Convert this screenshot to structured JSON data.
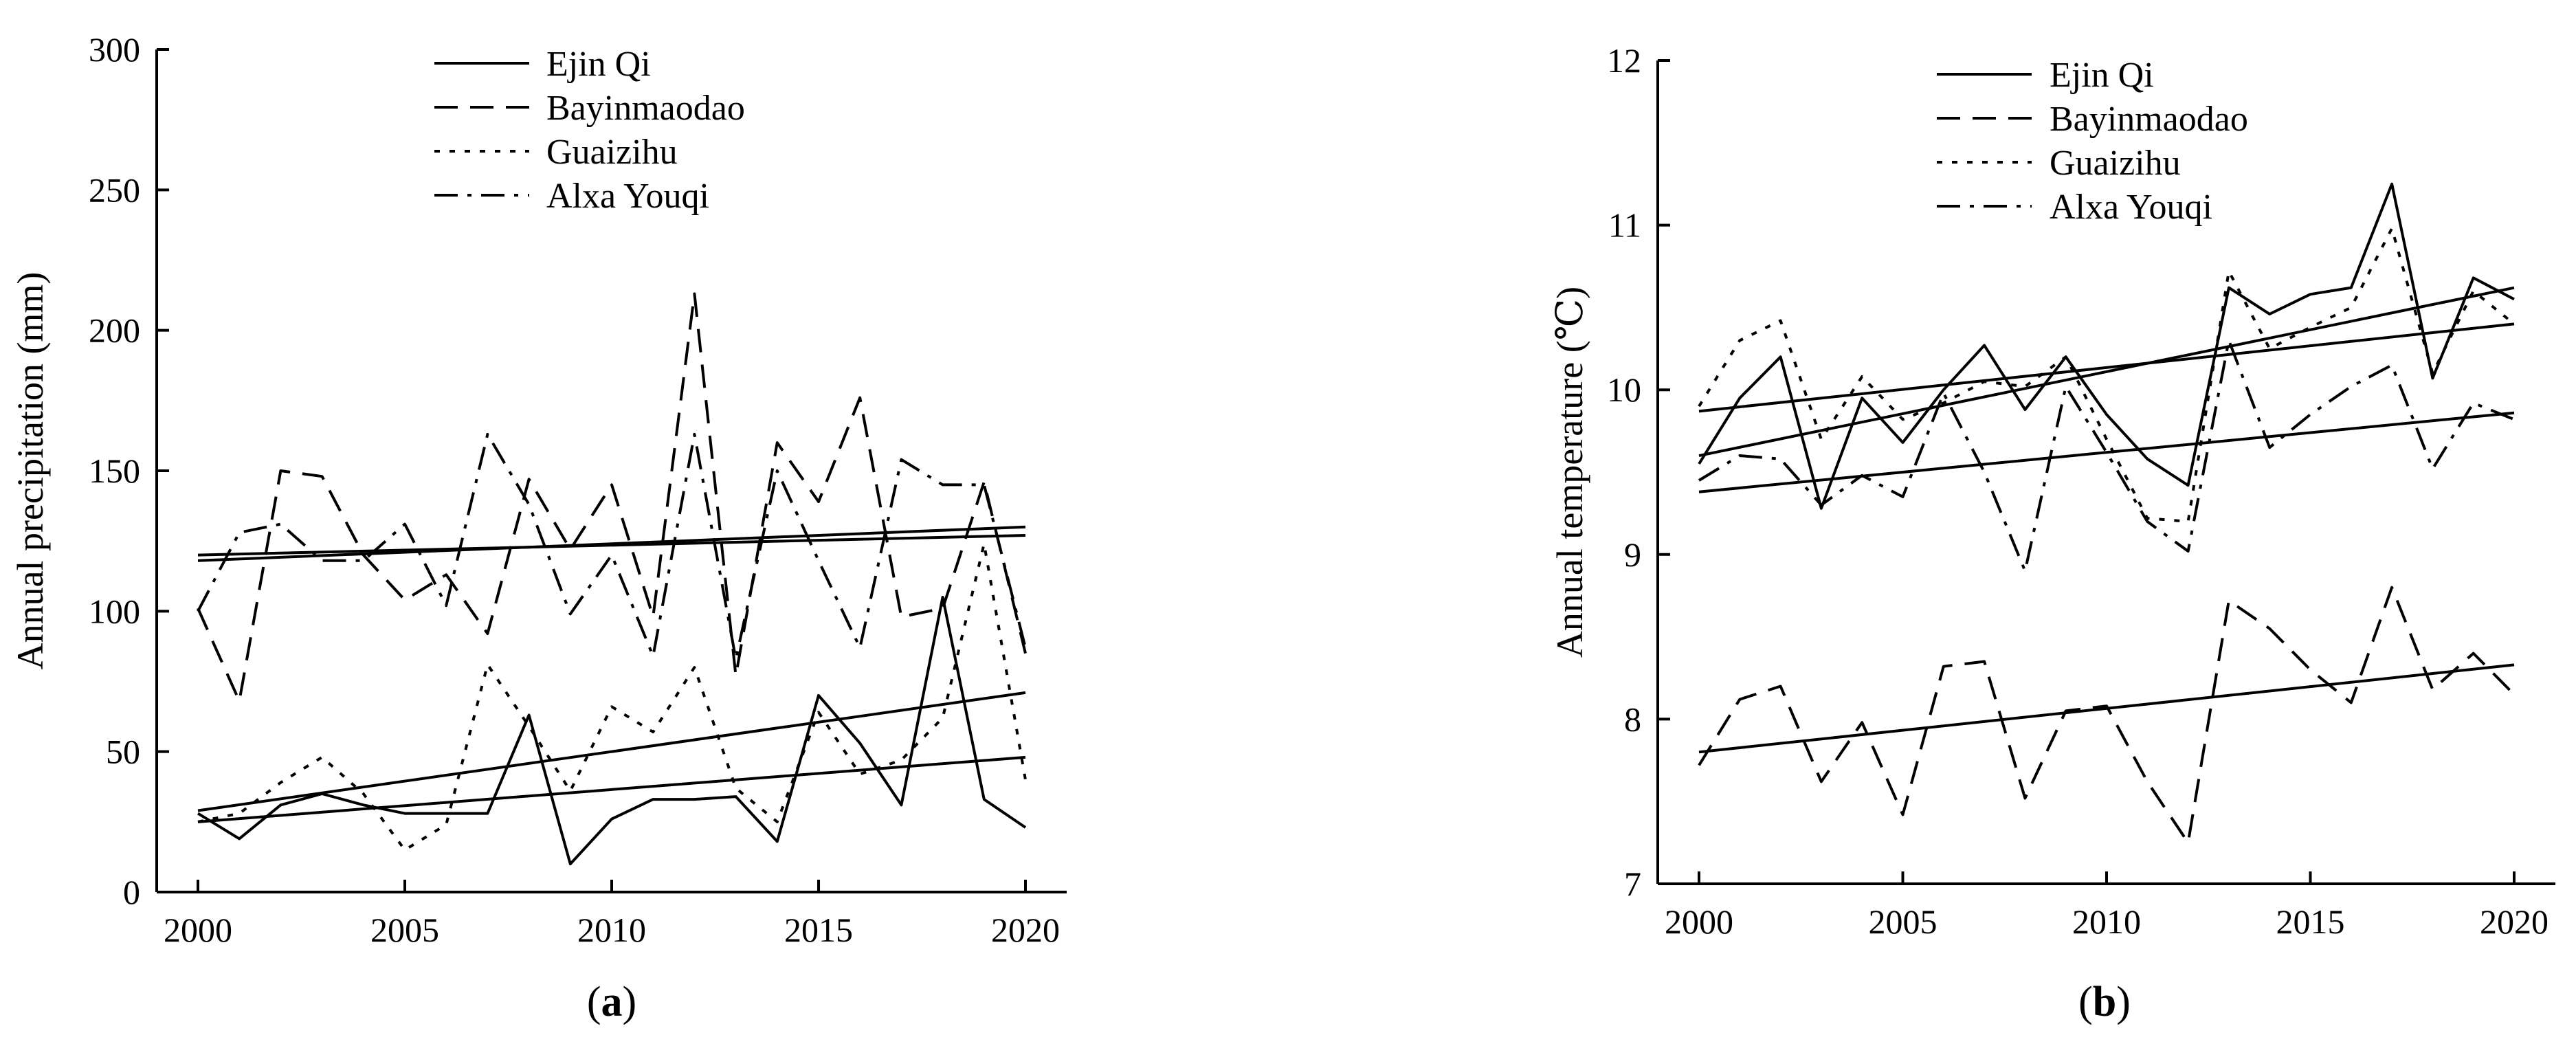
{
  "chart_data": [
    {
      "type": "line",
      "title": "",
      "caption": "(a)",
      "caption_parts": [
        "(",
        "a",
        ")"
      ],
      "xlabel": "",
      "ylabel": "Annual precipitation (mm)",
      "xlim": [
        2000,
        2020
      ],
      "ylim": [
        0,
        300
      ],
      "xticks": [
        2000,
        2005,
        2010,
        2015,
        2020
      ],
      "yticks": [
        0,
        50,
        100,
        150,
        200,
        250,
        300
      ],
      "grid": false,
      "legend_position": "top-center",
      "x": [
        2000,
        2001,
        2002,
        2003,
        2004,
        2005,
        2006,
        2007,
        2008,
        2009,
        2010,
        2011,
        2012,
        2013,
        2014,
        2015,
        2016,
        2017,
        2018,
        2019,
        2020
      ],
      "series": [
        {
          "name": "Ejin Qi",
          "style": "solid",
          "values": [
            28,
            19,
            31,
            35,
            31,
            28,
            28,
            28,
            63,
            10,
            26,
            33,
            33,
            34,
            18,
            70,
            53,
            31,
            105,
            33,
            23
          ]
        },
        {
          "name": "Bayinmaodao",
          "style": "dashed",
          "values": [
            101,
            68,
            150,
            148,
            120,
            104,
            113,
            92,
            147,
            122,
            145,
            98,
            213,
            77,
            160,
            139,
            176,
            98,
            101,
            146,
            85
          ]
        },
        {
          "name": "Guaizihu",
          "style": "dotted",
          "values": [
            25,
            28,
            39,
            48,
            35,
            15,
            24,
            81,
            59,
            36,
            66,
            57,
            80,
            37,
            25,
            64,
            42,
            47,
            62,
            124,
            40
          ]
        },
        {
          "name": "Alxa Youqi",
          "style": "dashdot",
          "values": [
            100,
            128,
            131,
            118,
            118,
            131,
            102,
            163,
            138,
            99,
            120,
            84,
            163,
            83,
            150,
            118,
            87,
            154,
            145,
            145,
            87
          ]
        }
      ],
      "trendlines": [
        {
          "name": "Ejin Qi",
          "start": [
            2000,
            25
          ],
          "end": [
            2020,
            48
          ]
        },
        {
          "name": "Bayinmaodao",
          "start": [
            2000,
            118
          ],
          "end": [
            2020,
            130
          ]
        },
        {
          "name": "Guaizihu",
          "start": [
            2000,
            29
          ],
          "end": [
            2020,
            71
          ]
        },
        {
          "name": "Alxa Youqi",
          "start": [
            2000,
            120
          ],
          "end": [
            2020,
            127
          ]
        }
      ]
    },
    {
      "type": "line",
      "title": "",
      "caption": "(b)",
      "caption_parts": [
        "(",
        "b",
        ")"
      ],
      "xlabel": "",
      "ylabel": "Annual temperature (℃)",
      "xlim": [
        2000,
        2020
      ],
      "ylim": [
        7,
        12
      ],
      "xticks": [
        2000,
        2005,
        2010,
        2015,
        2020
      ],
      "yticks": [
        7,
        8,
        9,
        10,
        11,
        12
      ],
      "grid": false,
      "legend_position": "top-left",
      "x": [
        2000,
        2001,
        2002,
        2003,
        2004,
        2005,
        2006,
        2007,
        2008,
        2009,
        2010,
        2011,
        2012,
        2013,
        2014,
        2015,
        2016,
        2017,
        2018,
        2019,
        2020
      ],
      "series": [
        {
          "name": "Ejin Qi",
          "style": "solid",
          "values": [
            9.55,
            9.95,
            10.2,
            9.28,
            9.95,
            9.68,
            10.0,
            10.27,
            9.88,
            10.2,
            9.85,
            9.58,
            9.42,
            10.62,
            10.46,
            10.58,
            10.62,
            11.25,
            10.07,
            10.68,
            10.55
          ]
        },
        {
          "name": "Bayinmaodao",
          "style": "dashed",
          "values": [
            7.72,
            8.12,
            8.2,
            7.62,
            7.98,
            7.42,
            8.32,
            8.35,
            7.52,
            8.05,
            8.08,
            7.62,
            7.25,
            8.72,
            8.55,
            8.3,
            8.1,
            8.8,
            8.18,
            8.4,
            8.15
          ]
        },
        {
          "name": "Guaizihu",
          "style": "dotted",
          "values": [
            9.9,
            10.3,
            10.42,
            9.7,
            10.08,
            9.82,
            9.92,
            10.05,
            10.02,
            10.2,
            9.7,
            9.22,
            9.2,
            10.72,
            10.25,
            10.38,
            10.5,
            10.98,
            10.1,
            10.6,
            10.4
          ]
        },
        {
          "name": "Alxa Youqi",
          "style": "dashdot",
          "values": [
            9.45,
            9.6,
            9.58,
            9.3,
            9.48,
            9.35,
            9.98,
            9.5,
            8.9,
            10.02,
            9.62,
            9.2,
            9.02,
            10.3,
            9.65,
            9.85,
            10.02,
            10.15,
            9.52,
            9.92,
            9.82
          ]
        }
      ],
      "trendlines": [
        {
          "name": "Ejin Qi",
          "start": [
            2000,
            9.6
          ],
          "end": [
            2020,
            10.62
          ]
        },
        {
          "name": "Bayinmaodao",
          "start": [
            2000,
            7.8
          ],
          "end": [
            2020,
            8.33
          ]
        },
        {
          "name": "Guaizihu",
          "start": [
            2000,
            9.87
          ],
          "end": [
            2020,
            10.4
          ]
        },
        {
          "name": "Alxa Youqi",
          "start": [
            2000,
            9.38
          ],
          "end": [
            2020,
            9.86
          ]
        }
      ]
    }
  ]
}
